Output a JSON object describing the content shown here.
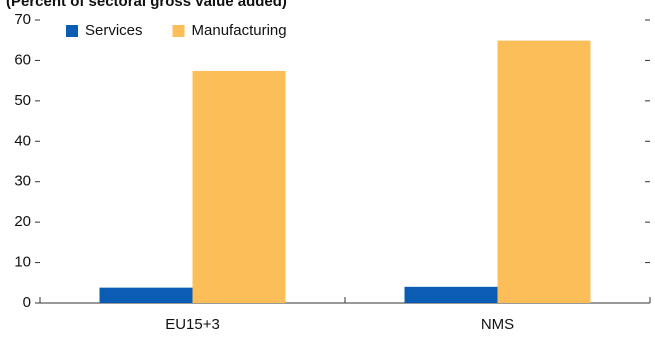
{
  "chart_data": {
    "type": "bar",
    "subtitle": "(Percent of sectoral gross value added)",
    "categories": [
      "EU15+3",
      "NMS"
    ],
    "series": [
      {
        "name": "Services",
        "color": "#0b5cb3",
        "values": [
          3.8,
          4.0
        ]
      },
      {
        "name": "Manufacturing",
        "color": "#fcbe58",
        "values": [
          57.4,
          64.9
        ]
      }
    ],
    "ylim": [
      0,
      70
    ],
    "yticks": [
      0,
      10,
      20,
      30,
      40,
      50,
      60,
      70
    ],
    "grid": false,
    "legend": "top-left"
  }
}
